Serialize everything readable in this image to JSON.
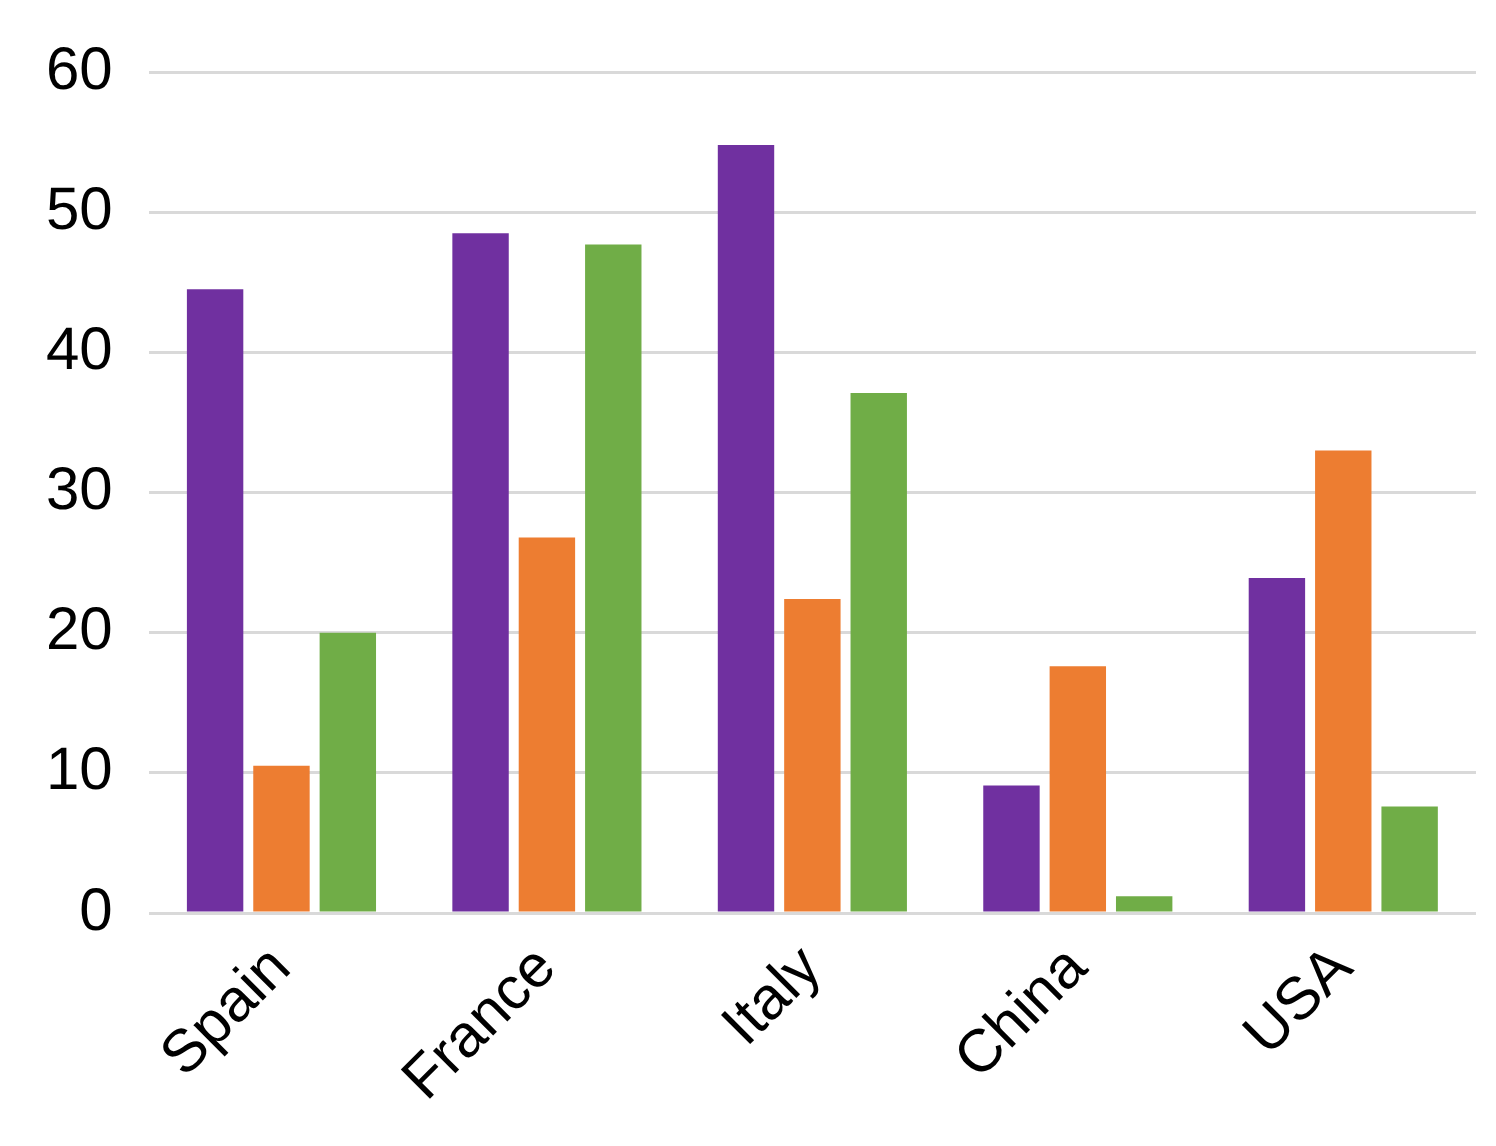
{
  "chart_data": {
    "type": "bar",
    "categories": [
      "Spain",
      "France",
      "Italy",
      "China",
      "USA"
    ],
    "series": [
      {
        "color": "#7030a0",
        "values": [
          44.5,
          48.5,
          54.8,
          9.1,
          23.9
        ]
      },
      {
        "color": "#ed7d31",
        "values": [
          10.5,
          26.8,
          22.4,
          17.6,
          33
        ]
      },
      {
        "color": "#70ad47",
        "values": [
          20,
          47.7,
          37.1,
          1.2,
          7.6
        ]
      }
    ],
    "ylim": [
      0,
      60
    ],
    "yticks": [
      0,
      10,
      20,
      30,
      40,
      50,
      60
    ],
    "grid": "y",
    "legend": false
  }
}
